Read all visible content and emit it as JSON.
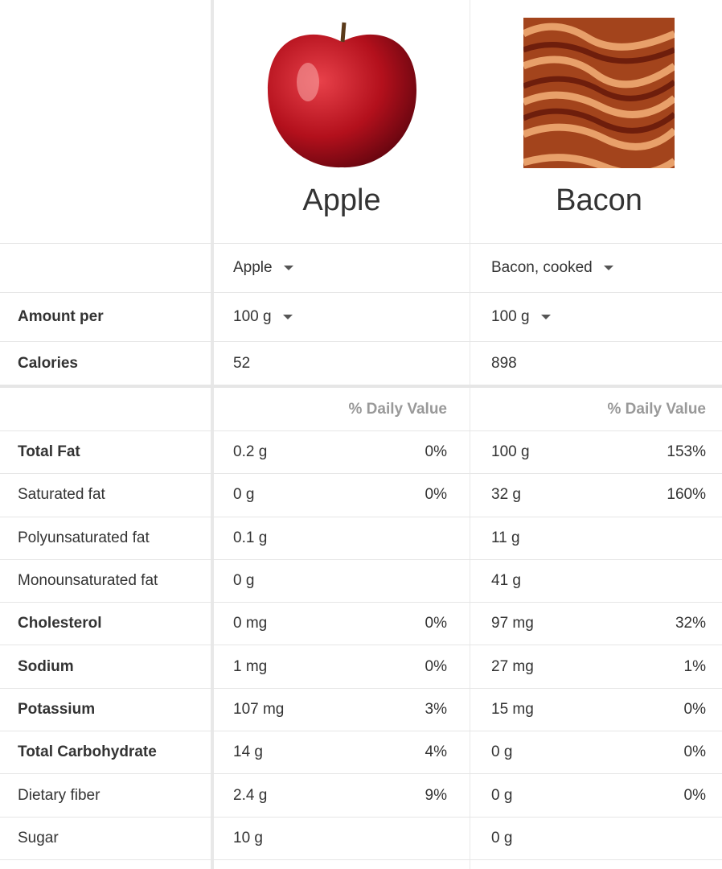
{
  "foods": [
    {
      "name": "Apple",
      "selector": "Apple",
      "amount": "100 g",
      "calories": "52"
    },
    {
      "name": "Bacon",
      "selector": "Bacon, cooked",
      "amount": "100 g",
      "calories": "898"
    }
  ],
  "labels": {
    "amount_per": "Amount per",
    "calories": "Calories",
    "daily_value": "% Daily Value"
  },
  "nutrients": [
    {
      "label": "Total Fat",
      "bold": true,
      "a": "0.2 g",
      "a_dv": "0%",
      "b": "100 g",
      "b_dv": "153%"
    },
    {
      "label": "Saturated fat",
      "bold": false,
      "a": "0 g",
      "a_dv": "0%",
      "b": "32 g",
      "b_dv": "160%"
    },
    {
      "label": "Polyunsaturated fat",
      "bold": false,
      "a": "0.1 g",
      "a_dv": "",
      "b": "11 g",
      "b_dv": ""
    },
    {
      "label": "Monounsaturated fat",
      "bold": false,
      "a": "0 g",
      "a_dv": "",
      "b": "41 g",
      "b_dv": ""
    },
    {
      "label": "Cholesterol",
      "bold": true,
      "a": "0 mg",
      "a_dv": "0%",
      "b": "97 mg",
      "b_dv": "32%"
    },
    {
      "label": "Sodium",
      "bold": true,
      "a": "1 mg",
      "a_dv": "0%",
      "b": "27 mg",
      "b_dv": "1%"
    },
    {
      "label": "Potassium",
      "bold": true,
      "a": "107 mg",
      "a_dv": "3%",
      "b": "15 mg",
      "b_dv": "0%"
    },
    {
      "label": "Total Carbohydrate",
      "bold": true,
      "a": "14 g",
      "a_dv": "4%",
      "b": "0 g",
      "b_dv": "0%"
    },
    {
      "label": "Dietary fiber",
      "bold": false,
      "a": "2.4 g",
      "a_dv": "9%",
      "b": "0 g",
      "b_dv": "0%"
    },
    {
      "label": "Sugar",
      "bold": false,
      "a": "10 g",
      "a_dv": "",
      "b": "0 g",
      "b_dv": ""
    }
  ]
}
